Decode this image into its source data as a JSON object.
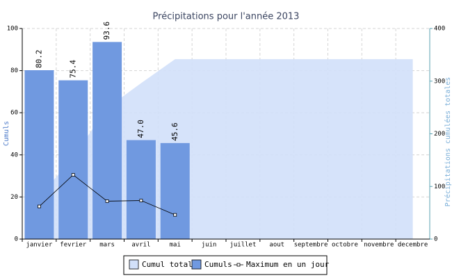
{
  "chart_data": {
    "type": "bar",
    "title": "Précipitations pour l'année 2013",
    "ylabel": "Cumuls",
    "y2label": "Précipitations cumulées totales",
    "categories": [
      "janvier",
      "fevrier",
      "mars",
      "avril",
      "mai",
      "juin",
      "juillet",
      "aout",
      "septembre",
      "octobre",
      "novembre",
      "decembre"
    ],
    "ylim": [
      0,
      100
    ],
    "yticks": [
      0,
      20,
      40,
      60,
      80,
      100
    ],
    "y2lim": [
      0,
      400
    ],
    "y2ticks": [
      0,
      100,
      200,
      300,
      400
    ],
    "grid": true,
    "legend": "bottom",
    "series": [
      {
        "name": "Cumul total",
        "type": "area",
        "axis": "y2",
        "color": "#d2e0f9",
        "values": [
          80.2,
          155.6,
          249.2,
          296.2,
          341.8,
          341.8,
          341.8,
          341.8,
          341.8,
          341.8,
          341.8,
          341.8
        ]
      },
      {
        "name": "Cumuls",
        "type": "bar",
        "color": "#7099e0",
        "values": [
          80.2,
          75.4,
          93.6,
          47.0,
          45.6,
          null,
          null,
          null,
          null,
          null,
          null,
          null
        ],
        "value_labels": [
          "80.2",
          "75.4",
          "93.6",
          "47.0",
          "45.6",
          null,
          null,
          null,
          null,
          null,
          null,
          null
        ]
      },
      {
        "name": "Maximum en un jour",
        "type": "line",
        "color": "#000000",
        "values": [
          15.5,
          30.5,
          18,
          18.3,
          11.5,
          null,
          null,
          null,
          null,
          null,
          null,
          null
        ]
      }
    ]
  }
}
